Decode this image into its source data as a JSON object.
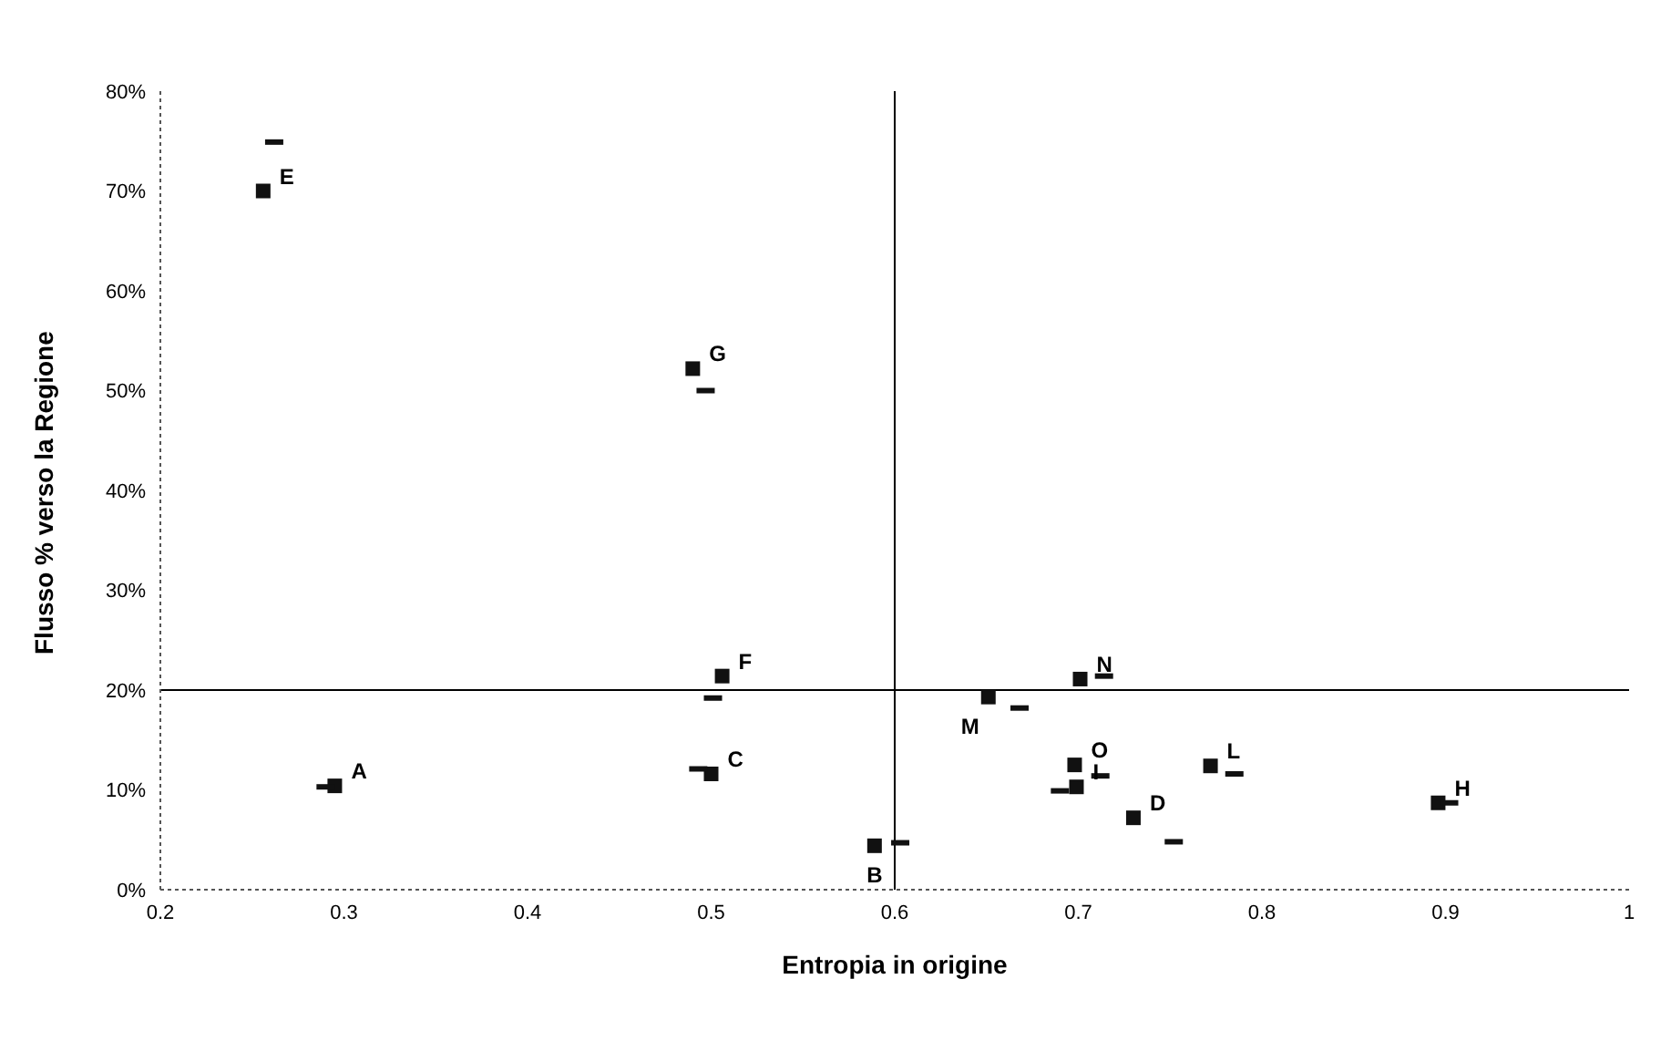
{
  "chart_data": {
    "type": "scatter",
    "xlabel": "Entropia in origine",
    "ylabel": "Flusso % verso la Regione",
    "xlim": [
      0.2,
      1
    ],
    "xticks": [
      0.2,
      0.3,
      0.4,
      0.5,
      0.6,
      0.7,
      0.8,
      0.9,
      1
    ],
    "ylim": [
      0,
      80
    ],
    "yticks": [
      {
        "value": 0,
        "label": "0%"
      },
      {
        "value": 10,
        "label": "10%"
      },
      {
        "value": 20,
        "label": "20%"
      },
      {
        "value": 30,
        "label": "30%"
      },
      {
        "value": 40,
        "label": "40%"
      },
      {
        "value": 50,
        "label": "50%"
      },
      {
        "value": 60,
        "label": "60%"
      },
      {
        "value": 70,
        "label": "70%"
      },
      {
        "value": 80,
        "label": "80%"
      }
    ],
    "grid": false,
    "legend": false,
    "ref_lines": [
      {
        "axis": "x",
        "value": 0.6,
        "color": "#000000"
      },
      {
        "axis": "y",
        "value": 20,
        "color": "#000000"
      }
    ],
    "series": [
      {
        "color": "#111111",
        "marker": "square",
        "x": [
          0.295,
          0.589,
          0.5,
          0.73,
          0.256,
          0.506,
          0.49,
          0.896,
          0.699,
          0.772,
          0.651,
          0.701,
          0.698
        ],
        "values": [
          10.4,
          4.4,
          11.6,
          7.2,
          70,
          21.4,
          52.2,
          8.7,
          10.3,
          12.4,
          19.3,
          21.1,
          12.5
        ],
        "value_labels": [
          "A",
          "B",
          "C",
          "D",
          "E",
          "F",
          "G",
          "H",
          "I",
          "L",
          "M",
          "N",
          "O"
        ]
      },
      {
        "color": "#111111",
        "x": [
          0.29,
          0.603,
          0.493,
          0.752,
          0.262,
          0.501,
          0.497,
          0.902,
          0.69,
          0.785,
          0.668,
          0.714,
          0.712
        ],
        "values": [
          10.3,
          4.7,
          12.1,
          4.8,
          74.9,
          19.2,
          50,
          8.7,
          9.9,
          11.6,
          18.2,
          21.4,
          11.4
        ]
      }
    ]
  }
}
